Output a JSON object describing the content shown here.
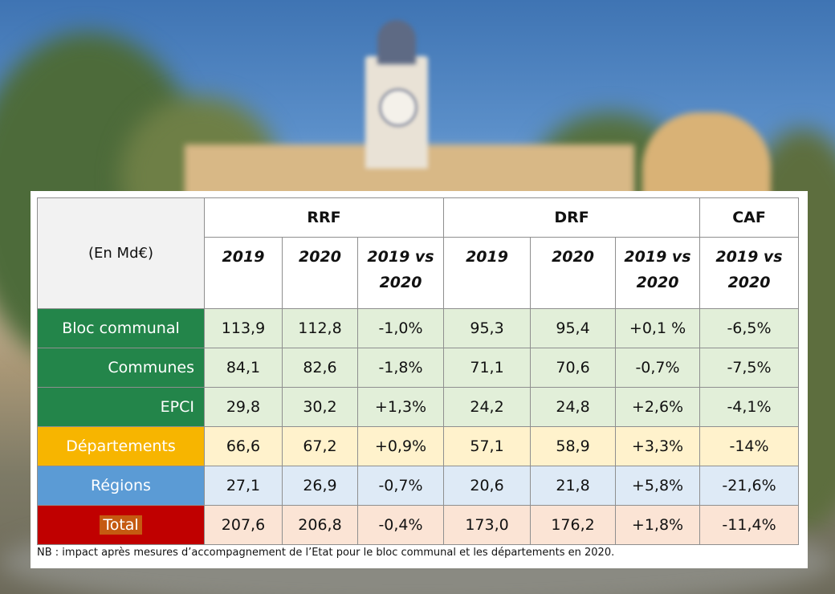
{
  "table": {
    "unit_label": "(En Md€)",
    "groups": [
      "RRF",
      "DRF",
      "CAF"
    ],
    "subheaders": [
      "2019",
      "2020",
      "2019 vs 2020",
      "2019",
      "2020",
      "2019 vs 2020",
      "2019 vs 2020"
    ],
    "rows": [
      {
        "label": "Bloc communal",
        "values": [
          "113,9",
          "112,8",
          "-1,0%",
          "95,3",
          "95,4",
          "+0,1 %",
          "-6,5%"
        ],
        "color": "#23854a"
      },
      {
        "label": "Communes",
        "values": [
          "84,1",
          "82,6",
          "-1,8%",
          "71,1",
          "70,6",
          "-0,7%",
          "-7,5%"
        ],
        "color": "#23854a"
      },
      {
        "label": "EPCI",
        "values": [
          "29,8",
          "30,2",
          "+1,3%",
          "24,2",
          "24,8",
          "+2,6%",
          "-4,1%"
        ],
        "color": "#23854a"
      },
      {
        "label": "Départements",
        "values": [
          "66,6",
          "67,2",
          "+0,9%",
          "57,1",
          "58,9",
          "+3,3%",
          "-14%"
        ],
        "color": "#f7b500"
      },
      {
        "label": "Régions",
        "values": [
          "27,1",
          "26,9",
          "-0,7%",
          "20,6",
          "21,8",
          "+5,8%",
          "-21,6%"
        ],
        "color": "#5b9bd5"
      },
      {
        "label": "Total",
        "values": [
          "207,6",
          "206,8",
          "-0,4%",
          "173,0",
          "176,2",
          "+1,8%",
          "-11,4%"
        ],
        "color": "#c00000"
      }
    ]
  },
  "note": "NB : impact après mesures d’accompagnement de l’Etat pour le bloc communal et les départements en 2020."
}
